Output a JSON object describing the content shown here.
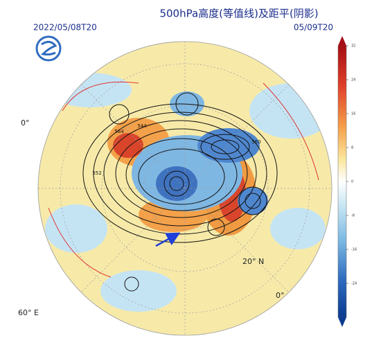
{
  "header": {
    "title": "500hPa高度(等值线)及距平(阴影)",
    "start_time": "2022/05/08T20",
    "valid_time": "05/09T20"
  },
  "map": {
    "labels": [
      "0°",
      "60° E",
      "20° N",
      "0°"
    ],
    "contour_labels": [
      "584",
      "544",
      "552",
      "560"
    ]
  },
  "colorbar": {
    "clim": [
      -32,
      32
    ],
    "ticks": [
      32,
      24,
      16,
      8,
      0,
      -8,
      -16,
      -24
    ]
  }
}
